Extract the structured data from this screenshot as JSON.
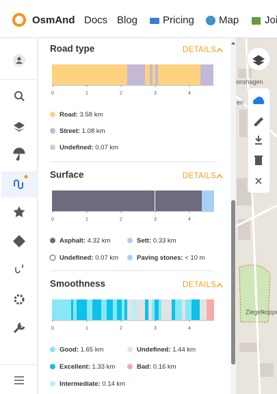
{
  "nav": {
    "logo": "OsmAnd",
    "links": [
      "Docs",
      "Blog",
      "Pricing",
      "Map",
      "Join"
    ]
  },
  "map": {
    "labels": [
      "onshagen",
      "en",
      "Ziegelkoppe"
    ]
  },
  "axis_ticks": [
    0,
    1,
    2,
    3,
    4
  ],
  "sections": [
    {
      "title": "Road type",
      "details": "DETAILS",
      "segments": [
        {
          "value": 2.2,
          "color": "#ffd27f"
        },
        {
          "value": 0.52,
          "color": "#c3b9d6"
        },
        {
          "value": 0.14,
          "color": "#ffd27f"
        },
        {
          "value": 0.08,
          "color": "#c3b9d6"
        },
        {
          "value": 0.08,
          "color": "#ffd27f"
        },
        {
          "value": 0.08,
          "color": "#c3b9d6"
        },
        {
          "value": 1.24,
          "color": "#ffd27f"
        },
        {
          "value": 0.38,
          "color": "#c3b9d6"
        }
      ],
      "legend": [
        {
          "label": "Road:",
          "value": "3.58 km",
          "color": "#ffd27f"
        },
        {
          "label": "Street:",
          "value": "1.08 km",
          "color": "#c3b9d6"
        },
        {
          "label": "Undefined:",
          "value": "0.07 km",
          "color": "#cccccc"
        }
      ]
    },
    {
      "title": "Surface",
      "details": "DETAILS",
      "segments": [
        {
          "value": 3.0,
          "color": "#6f6a80"
        },
        {
          "value": 0.02,
          "color": "#ffffff"
        },
        {
          "value": 1.36,
          "color": "#6f6a80"
        },
        {
          "value": 0.36,
          "color": "#a8d0f5"
        }
      ],
      "legend": [
        {
          "label": "Asphalt:",
          "value": "4.32 km",
          "color": "#6f6a80"
        },
        {
          "label": "Sett:",
          "value": "0.33 km",
          "color": "#a8d0f5"
        },
        {
          "label": "Undefined:",
          "value": "0.07 km",
          "color": "#ffffff"
        },
        {
          "label": "Paving stones:",
          "value": "< 10 m",
          "color": "#a8d0f5"
        }
      ]
    },
    {
      "title": "Smoothness",
      "details": "DETAILS",
      "segments": [
        {
          "value": 0.56,
          "color": "#86e8f5"
        },
        {
          "value": 0.06,
          "color": "#0cc2ea"
        },
        {
          "value": 0.1,
          "color": "#86e8f5"
        },
        {
          "value": 0.3,
          "color": "#0cc2ea"
        },
        {
          "value": 0.16,
          "color": "#86e8f5"
        },
        {
          "value": 0.26,
          "color": "#0cc2ea"
        },
        {
          "value": 0.16,
          "color": "#86e8f5"
        },
        {
          "value": 0.18,
          "color": "#0cc2ea"
        },
        {
          "value": 0.12,
          "color": "#86e8f5"
        },
        {
          "value": 0.14,
          "color": "#0cc2ea"
        },
        {
          "value": 0.08,
          "color": "#86e8f5"
        },
        {
          "value": 0.08,
          "color": "#0cc2ea"
        },
        {
          "value": 0.14,
          "color": "#e3e3e3"
        },
        {
          "value": 0.14,
          "color": "#b6f0f7"
        },
        {
          "value": 0.24,
          "color": "#e3e3e3"
        },
        {
          "value": 0.1,
          "color": "#0cc2ea"
        },
        {
          "value": 0.1,
          "color": "#e3e3e3"
        },
        {
          "value": 0.08,
          "color": "#86e8f5"
        },
        {
          "value": 0.12,
          "color": "#0cc2ea"
        },
        {
          "value": 0.08,
          "color": "#86e8f5"
        },
        {
          "value": 0.3,
          "color": "#e3e3e3"
        },
        {
          "value": 0.1,
          "color": "#0cc2ea"
        },
        {
          "value": 0.2,
          "color": "#86e8f5"
        },
        {
          "value": 0.1,
          "color": "#e3e3e3"
        },
        {
          "value": 0.18,
          "color": "#86e8f5"
        },
        {
          "value": 0.24,
          "color": "#0cc2ea"
        },
        {
          "value": 0.2,
          "color": "#e3e3e3"
        },
        {
          "value": 0.22,
          "color": "#f7aaaa"
        }
      ],
      "legend": [
        {
          "label": "Good:",
          "value": "1.65 km",
          "color": "#86e8f5"
        },
        {
          "label": "Undefined:",
          "value": "1.44 km",
          "color": "#e3e3e3"
        },
        {
          "label": "Excellent:",
          "value": "1.33 km",
          "color": "#0cc2ea"
        },
        {
          "label": "Bad:",
          "value": "0.16 km",
          "color": "#f7aaaa"
        },
        {
          "label": "Intermediate:",
          "value": "0.14 km",
          "color": "#b6f0f7"
        }
      ]
    }
  ]
}
